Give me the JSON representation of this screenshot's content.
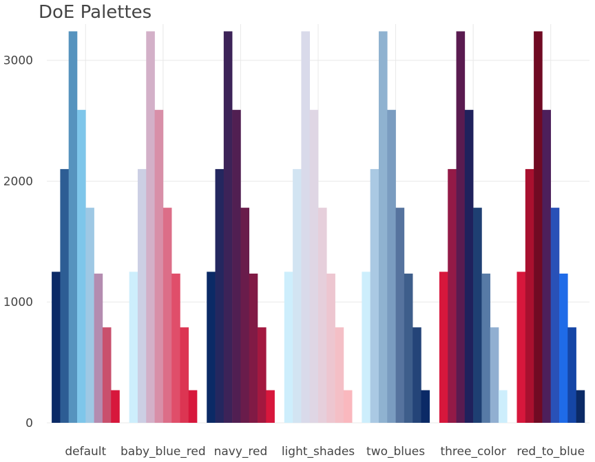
{
  "chart_data": {
    "type": "bar",
    "title": "DoE Palettes",
    "xlabel": "",
    "ylabel": "",
    "ylim": [
      0,
      3300
    ],
    "yticks": [
      0,
      1000,
      2000,
      3000
    ],
    "grid": true,
    "legend": "none",
    "categories": [
      "default",
      "baby_blue_red",
      "navy_red",
      "light_shades",
      "two_blues",
      "three_color",
      "red_to_blue"
    ],
    "values_per_bar": [
      1250,
      2100,
      3240,
      2590,
      1780,
      1235,
      790,
      270
    ],
    "groups": [
      {
        "name": "default",
        "colors": [
          "#0b2a66",
          "#2d5d94",
          "#5693be",
          "#7ec6ea",
          "#9ec8e4",
          "#b48cb0",
          "#c9506d",
          "#d7173c"
        ]
      },
      {
        "name": "baby_blue_red",
        "colors": [
          "#cdeefc",
          "#cccfe4",
          "#d3b0c8",
          "#d88fa8",
          "#dc6e88",
          "#e04e6a",
          "#dc3552",
          "#d7173c"
        ]
      },
      {
        "name": "navy_red",
        "colors": [
          "#0b2a66",
          "#24275f",
          "#3c2358",
          "#511f52",
          "#691c4b",
          "#801a45",
          "#a3183f",
          "#d7173c"
        ]
      },
      {
        "name": "light_shades",
        "colors": [
          "#cdeefc",
          "#d2e4f2",
          "#d9daea",
          "#dfd6e4",
          "#e6cfdb",
          "#edc6d0",
          "#f4bfc6",
          "#fab8be"
        ]
      },
      {
        "name": "two_blues",
        "colors": [
          "#cdeefc",
          "#aac9e3",
          "#8fb2d0",
          "#7a9cc0",
          "#56739e",
          "#3e5e8b",
          "#244478",
          "#0b2a66"
        ]
      },
      {
        "name": "three_color",
        "colors": [
          "#d7173c",
          "#931a47",
          "#5a1b50",
          "#20215c",
          "#1e3f72",
          "#577aa6",
          "#91afd1",
          "#cdeefc"
        ]
      },
      {
        "name": "red_to_blue",
        "colors": [
          "#d7173c",
          "#a8102f",
          "#700a23",
          "#4d1f5b",
          "#2951b7",
          "#1f6be8",
          "#1546a6",
          "#0b2a66"
        ]
      }
    ]
  }
}
